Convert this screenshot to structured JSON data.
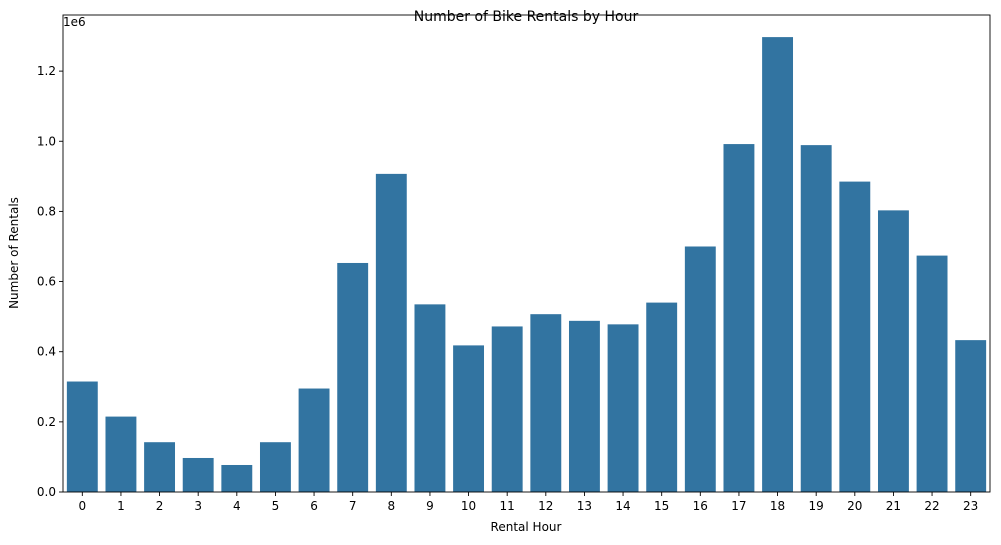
{
  "chart_data": {
    "type": "bar",
    "title": "Number of Bike Rentals by Hour",
    "xlabel": "Rental Hour",
    "ylabel": "Number of Rentals",
    "y_offset_label": "1e6",
    "categories": [
      "0",
      "1",
      "2",
      "3",
      "4",
      "5",
      "6",
      "7",
      "8",
      "9",
      "10",
      "11",
      "12",
      "13",
      "14",
      "15",
      "16",
      "17",
      "18",
      "19",
      "20",
      "21",
      "22",
      "23"
    ],
    "values": [
      315000,
      215000,
      142000,
      97000,
      77000,
      142000,
      295000,
      653000,
      907000,
      535000,
      418000,
      472000,
      507000,
      488000,
      478000,
      540000,
      700000,
      992000,
      1297000,
      989000,
      885000,
      803000,
      674000,
      433000
    ],
    "ylim": [
      0,
      1360000
    ],
    "yticks": [
      0,
      200000,
      400000,
      600000,
      800000,
      1000000,
      1200000
    ],
    "ytick_labels": [
      "0.0",
      "0.2",
      "0.4",
      "0.6",
      "0.8",
      "1.0",
      "1.2"
    ],
    "bar_color": "#3274a1",
    "grid": false,
    "legend": "none"
  }
}
